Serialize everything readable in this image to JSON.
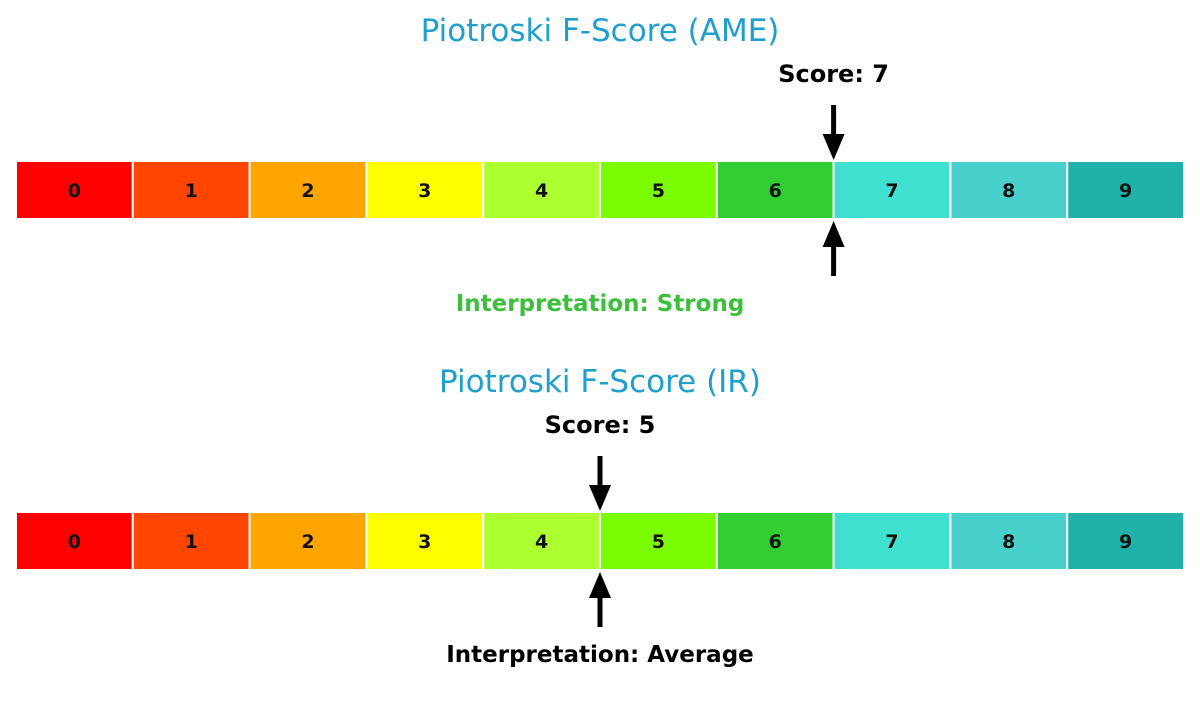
{
  "chart_data": [
    {
      "type": "gauge",
      "title": "Piotroski F-Score (AME)",
      "categories": [
        "0",
        "1",
        "2",
        "3",
        "4",
        "5",
        "6",
        "7",
        "8",
        "9"
      ],
      "score": 7,
      "score_label": "Score: 7",
      "interpretation": "Interpretation: Strong",
      "interpretation_color": "#3dbf3d"
    },
    {
      "type": "gauge",
      "title": "Piotroski F-Score (IR)",
      "categories": [
        "0",
        "1",
        "2",
        "3",
        "4",
        "5",
        "6",
        "7",
        "8",
        "9"
      ],
      "score": 5,
      "score_label": "Score: 5",
      "interpretation": "Interpretation: Average",
      "interpretation_color": "#000000"
    }
  ],
  "colors": {
    "title": "#1f9fcc",
    "segments": [
      "#ff0000",
      "#ff4500",
      "#ffa500",
      "#ffff00",
      "#adff2f",
      "#7cfc00",
      "#32cd32",
      "#40e0d0",
      "#48d1cc",
      "#20b2aa"
    ]
  }
}
